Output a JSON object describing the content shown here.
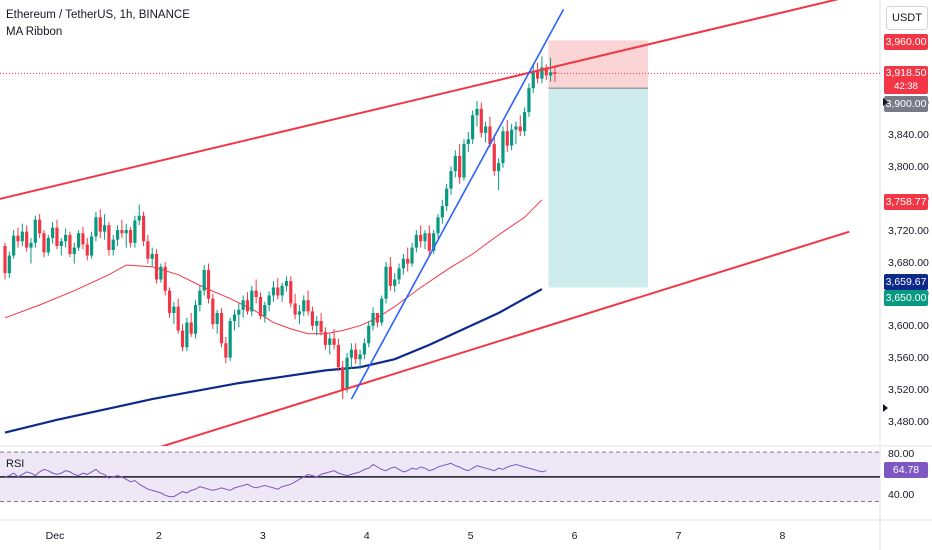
{
  "header": {
    "symbol_line": "Ethereum / TetherUS, 1h, BINANCE",
    "indicator": "MA Ribbon"
  },
  "currency_button": "USDT",
  "rsi": {
    "label": "RSI",
    "value": "64.78",
    "upper_level": "80.00",
    "lower_level": "40.00"
  },
  "price_labels": {
    "top_target": "3,960.00",
    "current": "3,918.50",
    "countdown": "42:38",
    "entry": "3,900.00",
    "ma_fast": "3,758.77",
    "ma_slow": "3,659.67",
    "bottom_target": "3,650.00"
  },
  "colors": {
    "up": "#089981",
    "down": "#f23645",
    "channel": "#f23645",
    "trendline": "#2962ff",
    "ma_fast": "#f23645",
    "ma_slow": "#0d2a8a",
    "stop_zone": "#fbd5d6",
    "target_zone": "#cdeceb",
    "rsi_line": "#7e57c2",
    "rsi_band": "#ede7f6",
    "grid": "#f0f3fa"
  },
  "chart_data": {
    "type": "candlestick",
    "title": "Ethereum / TetherUS, 1h, BINANCE",
    "ylim": [
      3460,
      3990
    ],
    "y_ticks": [
      "3,480.00",
      "3,520.00",
      "3,560.00",
      "3,600.00",
      "3,640.00",
      "3,680.00",
      "3,720.00",
      "3,760.00",
      "3,800.00",
      "3,840.00",
      "3,880.00"
    ],
    "x_ticks": [
      "Dec",
      "2",
      "3",
      "4",
      "5",
      "6",
      "7",
      "8"
    ],
    "x_tick_index": [
      0,
      24,
      48,
      72,
      96,
      120,
      144,
      168
    ],
    "candles": [
      [
        3702,
        3706,
        3660,
        3668
      ],
      [
        3668,
        3695,
        3662,
        3690
      ],
      [
        3690,
        3722,
        3686,
        3715
      ],
      [
        3715,
        3725,
        3700,
        3708
      ],
      [
        3708,
        3730,
        3702,
        3720
      ],
      [
        3720,
        3728,
        3695,
        3700
      ],
      [
        3700,
        3712,
        3680,
        3706
      ],
      [
        3706,
        3740,
        3700,
        3735
      ],
      [
        3735,
        3742,
        3712,
        3718
      ],
      [
        3718,
        3722,
        3688,
        3694
      ],
      [
        3694,
        3716,
        3690,
        3712
      ],
      [
        3712,
        3732,
        3705,
        3725
      ],
      [
        3725,
        3735,
        3698,
        3702
      ],
      [
        3702,
        3712,
        3690,
        3708
      ],
      [
        3708,
        3724,
        3700,
        3716
      ],
      [
        3716,
        3720,
        3688,
        3692
      ],
      [
        3692,
        3706,
        3680,
        3700
      ],
      [
        3700,
        3722,
        3696,
        3718
      ],
      [
        3718,
        3726,
        3698,
        3704
      ],
      [
        3704,
        3712,
        3684,
        3690
      ],
      [
        3690,
        3720,
        3686,
        3714
      ],
      [
        3714,
        3745,
        3708,
        3738
      ],
      [
        3738,
        3748,
        3712,
        3720
      ],
      [
        3720,
        3742,
        3710,
        3728
      ],
      [
        3728,
        3732,
        3690,
        3697
      ],
      [
        3697,
        3716,
        3690,
        3710
      ],
      [
        3710,
        3728,
        3702,
        3722
      ],
      [
        3722,
        3735,
        3712,
        3718
      ],
      [
        3718,
        3730,
        3700,
        3722
      ],
      [
        3722,
        3726,
        3700,
        3706
      ],
      [
        3706,
        3740,
        3700,
        3734
      ],
      [
        3734,
        3754,
        3728,
        3740
      ],
      [
        3740,
        3745,
        3702,
        3708
      ],
      [
        3708,
        3716,
        3680,
        3686
      ],
      [
        3686,
        3700,
        3676,
        3692
      ],
      [
        3692,
        3698,
        3655,
        3660
      ],
      [
        3660,
        3680,
        3656,
        3676
      ],
      [
        3676,
        3682,
        3640,
        3646
      ],
      [
        3646,
        3650,
        3612,
        3618
      ],
      [
        3618,
        3632,
        3604,
        3626
      ],
      [
        3626,
        3636,
        3592,
        3596
      ],
      [
        3596,
        3604,
        3570,
        3575
      ],
      [
        3575,
        3612,
        3570,
        3606
      ],
      [
        3606,
        3618,
        3588,
        3592
      ],
      [
        3592,
        3634,
        3586,
        3628
      ],
      [
        3628,
        3652,
        3620,
        3646
      ],
      [
        3646,
        3678,
        3640,
        3672
      ],
      [
        3672,
        3680,
        3630,
        3636
      ],
      [
        3636,
        3642,
        3598,
        3604
      ],
      [
        3604,
        3622,
        3592,
        3618
      ],
      [
        3618,
        3624,
        3575,
        3580
      ],
      [
        3580,
        3588,
        3555,
        3562
      ],
      [
        3562,
        3612,
        3558,
        3608
      ],
      [
        3608,
        3622,
        3596,
        3616
      ],
      [
        3616,
        3630,
        3600,
        3622
      ],
      [
        3622,
        3640,
        3612,
        3634
      ],
      [
        3634,
        3644,
        3616,
        3620
      ],
      [
        3620,
        3652,
        3614,
        3646
      ],
      [
        3646,
        3660,
        3630,
        3638
      ],
      [
        3638,
        3644,
        3610,
        3614
      ],
      [
        3614,
        3632,
        3606,
        3628
      ],
      [
        3628,
        3645,
        3620,
        3640
      ],
      [
        3640,
        3658,
        3632,
        3650
      ],
      [
        3650,
        3662,
        3635,
        3640
      ],
      [
        3640,
        3656,
        3632,
        3652
      ],
      [
        3652,
        3664,
        3645,
        3658
      ],
      [
        3658,
        3664,
        3625,
        3630
      ],
      [
        3630,
        3642,
        3610,
        3616
      ],
      [
        3616,
        3628,
        3604,
        3620
      ],
      [
        3620,
        3640,
        3614,
        3634
      ],
      [
        3634,
        3646,
        3615,
        3620
      ],
      [
        3620,
        3626,
        3596,
        3602
      ],
      [
        3602,
        3614,
        3590,
        3608
      ],
      [
        3608,
        3618,
        3590,
        3594
      ],
      [
        3594,
        3600,
        3572,
        3578
      ],
      [
        3578,
        3592,
        3566,
        3586
      ],
      [
        3586,
        3598,
        3572,
        3578
      ],
      [
        3578,
        3586,
        3545,
        3550
      ],
      [
        3550,
        3558,
        3510,
        3522
      ],
      [
        3522,
        3568,
        3518,
        3562
      ],
      [
        3562,
        3580,
        3548,
        3572
      ],
      [
        3572,
        3580,
        3554,
        3560
      ],
      [
        3560,
        3572,
        3548,
        3566
      ],
      [
        3566,
        3586,
        3560,
        3580
      ],
      [
        3580,
        3608,
        3575,
        3602
      ],
      [
        3602,
        3625,
        3596,
        3618
      ],
      [
        3618,
        3616,
        3600,
        3606
      ],
      [
        3606,
        3640,
        3602,
        3636
      ],
      [
        3636,
        3682,
        3630,
        3676
      ],
      [
        3676,
        3688,
        3646,
        3652
      ],
      [
        3652,
        3668,
        3644,
        3660
      ],
      [
        3660,
        3680,
        3654,
        3674
      ],
      [
        3674,
        3692,
        3666,
        3686
      ],
      [
        3686,
        3700,
        3670,
        3680
      ],
      [
        3680,
        3706,
        3676,
        3700
      ],
      [
        3700,
        3722,
        3694,
        3716
      ],
      [
        3716,
        3728,
        3700,
        3708
      ],
      [
        3708,
        3722,
        3698,
        3718
      ],
      [
        3718,
        3728,
        3690,
        3696
      ],
      [
        3696,
        3722,
        3692,
        3718
      ],
      [
        3718,
        3742,
        3712,
        3738
      ],
      [
        3738,
        3760,
        3730,
        3752
      ],
      [
        3752,
        3780,
        3746,
        3774
      ],
      [
        3774,
        3802,
        3766,
        3796
      ],
      [
        3796,
        3822,
        3788,
        3815
      ],
      [
        3815,
        3830,
        3780,
        3788
      ],
      [
        3788,
        3836,
        3784,
        3830
      ],
      [
        3830,
        3845,
        3820,
        3836
      ],
      [
        3836,
        3872,
        3830,
        3866
      ],
      [
        3866,
        3884,
        3852,
        3874
      ],
      [
        3874,
        3882,
        3838,
        3844
      ],
      [
        3844,
        3858,
        3832,
        3852
      ],
      [
        3852,
        3864,
        3826,
        3830
      ],
      [
        3830,
        3842,
        3790,
        3796
      ],
      [
        3796,
        3812,
        3772,
        3806
      ],
      [
        3806,
        3852,
        3800,
        3846
      ],
      [
        3846,
        3860,
        3820,
        3828
      ],
      [
        3828,
        3855,
        3822,
        3848
      ],
      [
        3848,
        3858,
        3830,
        3852
      ],
      [
        3852,
        3866,
        3840,
        3846
      ],
      [
        3846,
        3876,
        3840,
        3870
      ],
      [
        3870,
        3906,
        3864,
        3900
      ],
      [
        3900,
        3930,
        3894,
        3922
      ],
      [
        3922,
        3932,
        3906,
        3912
      ],
      [
        3912,
        3940,
        3906,
        3926
      ],
      [
        3926,
        3930,
        3910,
        3916
      ],
      [
        3916,
        3938,
        3908,
        3920
      ],
      [
        3920,
        3926,
        3908,
        3918
      ]
    ],
    "ma_fast": [
      [
        0,
        3612
      ],
      [
        8,
        3628
      ],
      [
        16,
        3646
      ],
      [
        24,
        3666
      ],
      [
        28,
        3678
      ],
      [
        34,
        3676
      ],
      [
        40,
        3666
      ],
      [
        46,
        3650
      ],
      [
        52,
        3636
      ],
      [
        58,
        3620
      ],
      [
        62,
        3606
      ],
      [
        66,
        3598
      ],
      [
        70,
        3592
      ],
      [
        74,
        3592
      ],
      [
        78,
        3596
      ],
      [
        82,
        3602
      ],
      [
        86,
        3612
      ],
      [
        90,
        3626
      ],
      [
        96,
        3650
      ],
      [
        102,
        3672
      ],
      [
        108,
        3692
      ],
      [
        114,
        3716
      ],
      [
        120,
        3738
      ],
      [
        124,
        3760
      ]
    ],
    "ma_slow": [
      [
        0,
        3468
      ],
      [
        12,
        3484
      ],
      [
        24,
        3498
      ],
      [
        34,
        3510
      ],
      [
        44,
        3520
      ],
      [
        54,
        3530
      ],
      [
        64,
        3538
      ],
      [
        74,
        3546
      ],
      [
        82,
        3550
      ],
      [
        90,
        3560
      ],
      [
        98,
        3578
      ],
      [
        106,
        3598
      ],
      [
        114,
        3618
      ],
      [
        120,
        3636
      ],
      [
        124,
        3648
      ]
    ],
    "channel_upper": [
      [
        -2,
        3760
      ],
      [
        195,
        4015
      ]
    ],
    "channel_lower": [
      [
        30,
        3440
      ],
      [
        195,
        3720
      ]
    ],
    "trendline": [
      [
        80,
        3510
      ],
      [
        129,
        3999
      ]
    ],
    "position": {
      "stop": 3960.0,
      "entry": 3900.0,
      "target": 3650.0,
      "x_start": 125.5,
      "x_end": 148.5
    },
    "current_price": 3918.5,
    "rsi": {
      "ylim": [
        25,
        85
      ],
      "levels": [
        80,
        40
      ],
      "values": [
        60,
        61,
        63,
        60,
        62,
        64,
        63,
        61,
        64,
        66,
        65,
        63,
        62,
        63,
        65,
        64,
        62,
        61,
        63,
        62,
        64,
        66,
        63,
        62,
        59,
        60,
        61,
        60,
        58,
        56,
        57,
        54,
        52,
        50,
        49,
        48,
        47,
        45,
        44,
        44,
        46,
        48,
        47,
        49,
        50,
        52,
        51,
        50,
        49,
        50,
        51,
        50,
        49,
        51,
        52,
        53,
        54,
        52,
        51,
        52,
        53,
        52,
        51,
        50,
        52,
        53,
        54,
        56,
        58,
        60,
        62,
        61,
        60,
        62,
        63,
        64,
        65,
        63,
        62,
        61,
        62,
        63,
        64,
        66,
        67,
        70,
        68,
        66,
        65,
        67,
        68,
        66,
        64,
        65,
        67,
        66,
        68,
        67,
        65,
        66,
        68,
        69,
        70,
        71,
        69,
        68,
        66,
        65,
        67,
        69,
        68,
        67,
        66,
        65,
        67,
        66,
        68,
        69,
        70,
        69,
        68,
        67,
        66,
        65,
        64,
        65
      ]
    }
  }
}
